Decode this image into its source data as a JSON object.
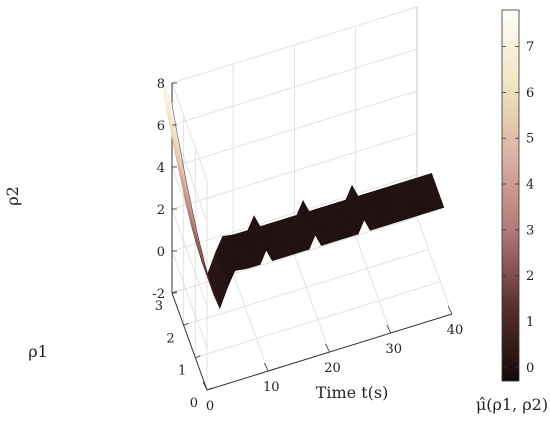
{
  "chart_data": {
    "type": "surface",
    "title": "",
    "xlabel": "Time t(s)",
    "ylabel": "ρ1",
    "zlabel": "ρ2",
    "colorbar_label": "μ̂(ρ1, ρ2)",
    "x_ticks": [
      "0",
      "10",
      "20",
      "30",
      "40"
    ],
    "y_ticks": [
      "0",
      "1",
      "2",
      "3"
    ],
    "z_ticks": [
      "-2",
      "0",
      "2",
      "4",
      "6",
      "8"
    ],
    "colorbar_ticks": [
      "0",
      "1",
      "2",
      "3",
      "4",
      "5",
      "6",
      "7"
    ],
    "xlim": [
      0,
      40
    ],
    "ylim": [
      0,
      3
    ],
    "zlim": [
      -2,
      8
    ],
    "colorbar_range": [
      -0.3,
      7.8
    ],
    "grid": true,
    "colormap": [
      "#140a0a",
      "#5a2e2e",
      "#b07777",
      "#dbb0a0",
      "#f0e4c2",
      "#fffff8"
    ],
    "surface_rows": {
      "t": [
        0,
        0.3,
        0.6,
        0.9,
        1.2,
        1.5,
        1.8,
        2.1,
        2.4,
        2.7,
        3,
        3.5,
        4,
        5,
        6,
        7,
        8,
        9,
        10,
        11,
        12,
        13,
        14,
        15,
        16,
        17,
        18,
        19,
        20,
        21,
        22,
        23,
        24,
        25,
        26,
        27,
        28,
        29,
        30,
        31,
        32,
        33,
        34,
        35,
        36,
        37,
        38,
        39,
        40
      ],
      "rho1": [
        3,
        2.85,
        2.7,
        2.55,
        2.4,
        2.25,
        2.1,
        1.95,
        1.8,
        1.65,
        1.5,
        1.25,
        1,
        0.8,
        0.75,
        0.72,
        0.7,
        0.7,
        0.7,
        0.7,
        0.7,
        0.7,
        0.7,
        0.7,
        0.7,
        0.7,
        0.7,
        0.7,
        0.7,
        0.7,
        0.7,
        0.7,
        0.7,
        0.7,
        0.7,
        0.7,
        0.7,
        0.7,
        0.7,
        0.7,
        0.7,
        0.7,
        0.7,
        0.7,
        0.7,
        0.7,
        0.7,
        0.7,
        0.7
      ],
      "rho2": [
        7,
        6.2,
        5.5,
        4.8,
        4.1,
        3.5,
        2.9,
        2.3,
        1.8,
        1.3,
        0.9,
        0.3,
        0,
        1.3,
        2,
        2,
        2,
        2,
        2,
        2.6,
        2,
        2,
        2,
        2,
        2,
        2,
        2,
        2.6,
        2,
        2,
        2,
        2,
        2,
        2,
        2,
        2.6,
        2,
        2,
        2,
        2,
        2,
        2,
        2,
        2,
        2,
        2,
        2,
        2,
        2
      ],
      "mu": [
        7.5,
        6.9,
        6.3,
        5.7,
        5.1,
        4.5,
        3.9,
        3.3,
        2.8,
        2.3,
        1.8,
        1,
        0.3,
        0,
        0,
        0,
        0,
        0,
        0,
        0,
        0,
        0,
        0,
        0,
        0,
        0,
        0,
        0,
        0,
        0,
        0,
        0,
        0,
        0,
        0,
        0,
        0,
        0,
        0,
        0,
        0,
        0,
        0,
        0,
        0,
        0,
        0,
        0,
        0
      ]
    }
  }
}
